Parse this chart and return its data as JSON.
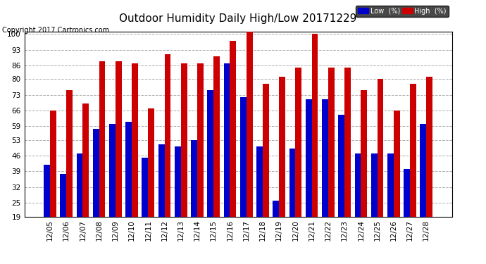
{
  "title": "Outdoor Humidity Daily High/Low 20171229",
  "copyright": "Copyright 2017 Cartronics.com",
  "dates": [
    "12/05",
    "12/06",
    "12/07",
    "12/08",
    "12/09",
    "12/10",
    "12/11",
    "12/12",
    "12/13",
    "12/14",
    "12/15",
    "12/16",
    "12/17",
    "12/18",
    "12/19",
    "12/20",
    "12/21",
    "12/22",
    "12/23",
    "12/24",
    "12/25",
    "12/26",
    "12/27",
    "12/28"
  ],
  "high": [
    66,
    75,
    69,
    88,
    88,
    87,
    67,
    91,
    87,
    87,
    90,
    97,
    101,
    78,
    81,
    85,
    100,
    85,
    85,
    75,
    80,
    66,
    78,
    81
  ],
  "low": [
    42,
    38,
    47,
    58,
    60,
    61,
    45,
    51,
    50,
    53,
    75,
    87,
    72,
    50,
    26,
    49,
    71,
    71,
    64,
    47,
    47,
    47,
    40,
    60
  ],
  "ylim_min": 19,
  "ylim_max": 101,
  "yticks": [
    19,
    25,
    32,
    39,
    46,
    53,
    59,
    66,
    73,
    80,
    86,
    93,
    100
  ],
  "bar_width": 0.38,
  "low_color": "#0000cc",
  "high_color": "#cc0000",
  "bg_color": "#ffffff",
  "grid_color": "#aaaaaa",
  "title_fontsize": 11,
  "copyright_fontsize": 7,
  "tick_fontsize": 7.5,
  "legend_low_label": "Low  (%)",
  "legend_high_label": "High  (%)"
}
